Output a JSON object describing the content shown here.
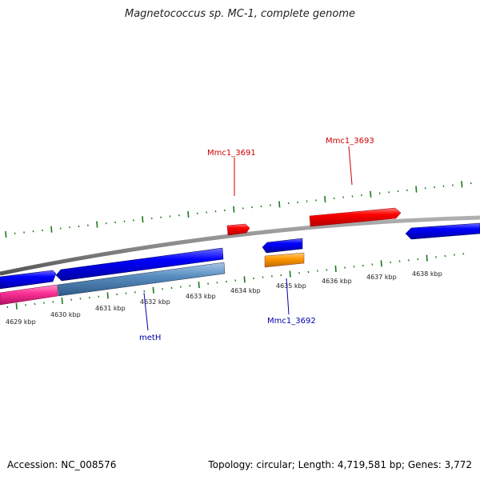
{
  "title": "Magnetococcus sp. MC-1, complete genome",
  "footer": {
    "accession": "Accession: NC_008576",
    "summary": "Topology: circular; Length: 4,719,581 bp; Genes: 3,772"
  },
  "ticks": [
    "4629 kbp",
    "4630 kbp",
    "4631 kbp",
    "4632 kbp",
    "4633 kbp",
    "4634 kbp",
    "4635 kbp",
    "4636 kbp",
    "4637 kbp",
    "4638 kbp"
  ],
  "gene_labels": {
    "mmc1_3691": "Mmc1_3691",
    "mmc1_3693": "Mmc1_3693",
    "mmc1_3692": "Mmc1_3692",
    "meth": "metH"
  },
  "colors": {
    "forward_gene": "#ff0000",
    "reverse_gene": "#0000ff",
    "orange_gene": "#ff9900",
    "pink_gene": "#ff3399",
    "steel_gene": "#4f84b8",
    "backbone": "#808080",
    "tick": "#1a7a1a",
    "forward_label": "#cc0000",
    "reverse_label": "#0000aa"
  }
}
